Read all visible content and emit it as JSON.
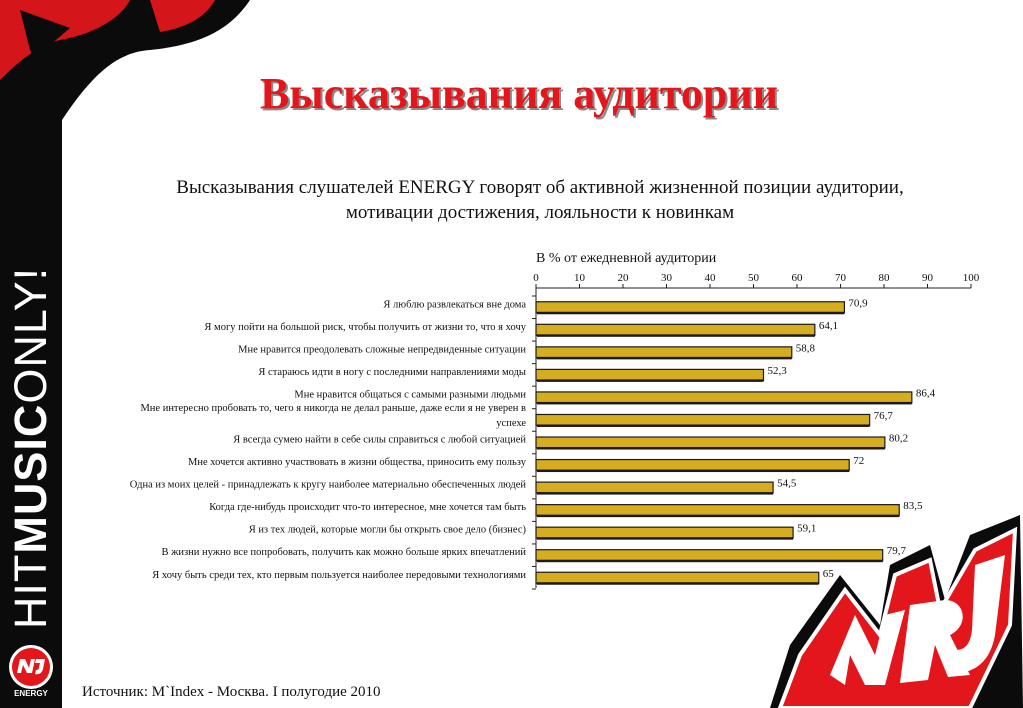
{
  "title": "Высказывания аудитории",
  "subtitle_line1": "Высказывания слушателей ENERGY говорят об активной жизненной позиции аудитории,",
  "subtitle_line2": "мотивации достижения, лояльности к новинкам",
  "source": "Источник: M`Index - Москва. I полугодие 2010",
  "brand": {
    "vertical_hit": "HIT",
    "vertical_music": "MUSIC",
    "vertical_only": "ONLY!",
    "small_logo_caption": "ENERGY"
  },
  "colors": {
    "title": "#e3171b",
    "bar_fill": "#d6ad1f",
    "bar_stroke": "#1a1a1a",
    "logo_red": "#e3171b"
  },
  "chart_data": {
    "type": "bar",
    "orientation": "horizontal",
    "axis_title": "В % от ежедневной аудитории",
    "xlim": [
      0,
      100
    ],
    "ticks": [
      0,
      10,
      20,
      30,
      40,
      50,
      60,
      70,
      80,
      90,
      100
    ],
    "tick_position": "top",
    "grid": false,
    "categories": [
      [
        "Я люблю развлекаться вне дома"
      ],
      [
        "Я могу пойти на большой риск, чтобы получить от жизни то, что я хочу"
      ],
      [
        "Мне нравится преодолевать сложные непредвиденные ситуации"
      ],
      [
        "Я стараюсь идти в ногу с последними направлениями моды"
      ],
      [
        "Мне нравится общаться с самыми разными людьми"
      ],
      [
        "Мне интересно пробовать то, чего я никогда не делал раньше, даже если я не уверен в",
        "успехе"
      ],
      [
        "Я всегда сумею найти в себе силы справиться с любой ситуацией"
      ],
      [
        "Мне хочется активно участвовать в жизни общества, приносить ему пользу"
      ],
      [
        "Одна из моих целей - принадлежать к кругу наиболее материально обеспеченных людей"
      ],
      [
        "Когда где-нибудь происходит что-то интересное, мне хочется там быть"
      ],
      [
        "Я из тех людей, которые могли бы открыть свое дело (бизнес)"
      ],
      [
        "В жизни нужно все попробовать, получить как можно больше ярких впечатлений"
      ],
      [
        "Я хочу быть среди тех, кто первым пользуется наиболее передовыми технологиями"
      ]
    ],
    "values": [
      70.9,
      64.1,
      58.8,
      52.3,
      86.4,
      76.7,
      80.2,
      72,
      54.5,
      83.5,
      59.1,
      79.7,
      65
    ],
    "value_labels": [
      "70,9",
      "64,1",
      "58,8",
      "52,3",
      "86,4",
      "76,7",
      "80,2",
      "72",
      "54,5",
      "83,5",
      "59,1",
      "79,7",
      "65"
    ]
  }
}
